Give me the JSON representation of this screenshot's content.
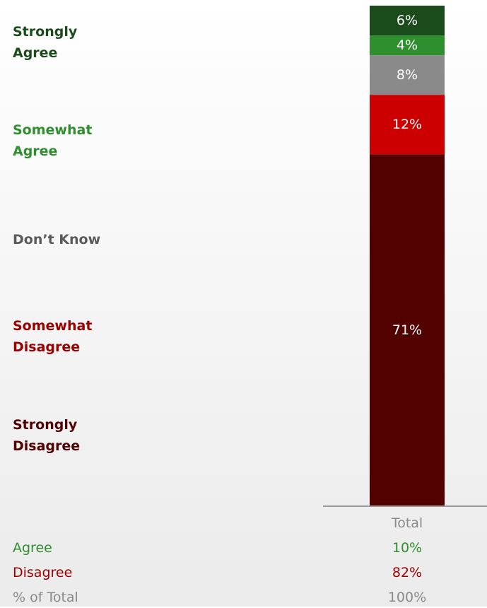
{
  "chart_data": {
    "type": "bar",
    "stacked": true,
    "categories": [
      "Total"
    ],
    "series": [
      {
        "name": "Strongly Agree",
        "values": [
          6
        ],
        "label": "6%",
        "color": "#1b4a1b"
      },
      {
        "name": "Somewhat Agree",
        "values": [
          4
        ],
        "label": "4%",
        "color": "#2f8f2f"
      },
      {
        "name": "Don’t Know",
        "values": [
          8
        ],
        "label": "8%",
        "color": "#8a8a8a"
      },
      {
        "name": "Somewhat Disagree",
        "values": [
          12
        ],
        "label": "12%",
        "color": "#cc0000"
      },
      {
        "name": "Strongly Disagree",
        "values": [
          71
        ],
        "label": "71%",
        "color": "#520000"
      }
    ],
    "ylim": [
      0,
      101
    ]
  },
  "legend": [
    {
      "text": "Strongly\nAgree",
      "color": "#1b4a1b"
    },
    {
      "text": "Somewhat\nAgree",
      "color": "#2f8f2f"
    },
    {
      "text": "Don’t Know",
      "color": "#5a5a5a"
    },
    {
      "text": "Somewhat\nDisagree",
      "color": "#9b0000"
    },
    {
      "text": "Strongly\nDisagree",
      "color": "#520000"
    }
  ],
  "column_header": "Total",
  "summary": {
    "agree": {
      "label": "Agree",
      "value": "10%",
      "color": "#2f8f2f"
    },
    "disagree": {
      "label": "Disagree",
      "value": "82%",
      "color": "#9b0000"
    },
    "total": {
      "label": "% of Total",
      "value": "100%",
      "color": "#8a8a8a"
    }
  }
}
